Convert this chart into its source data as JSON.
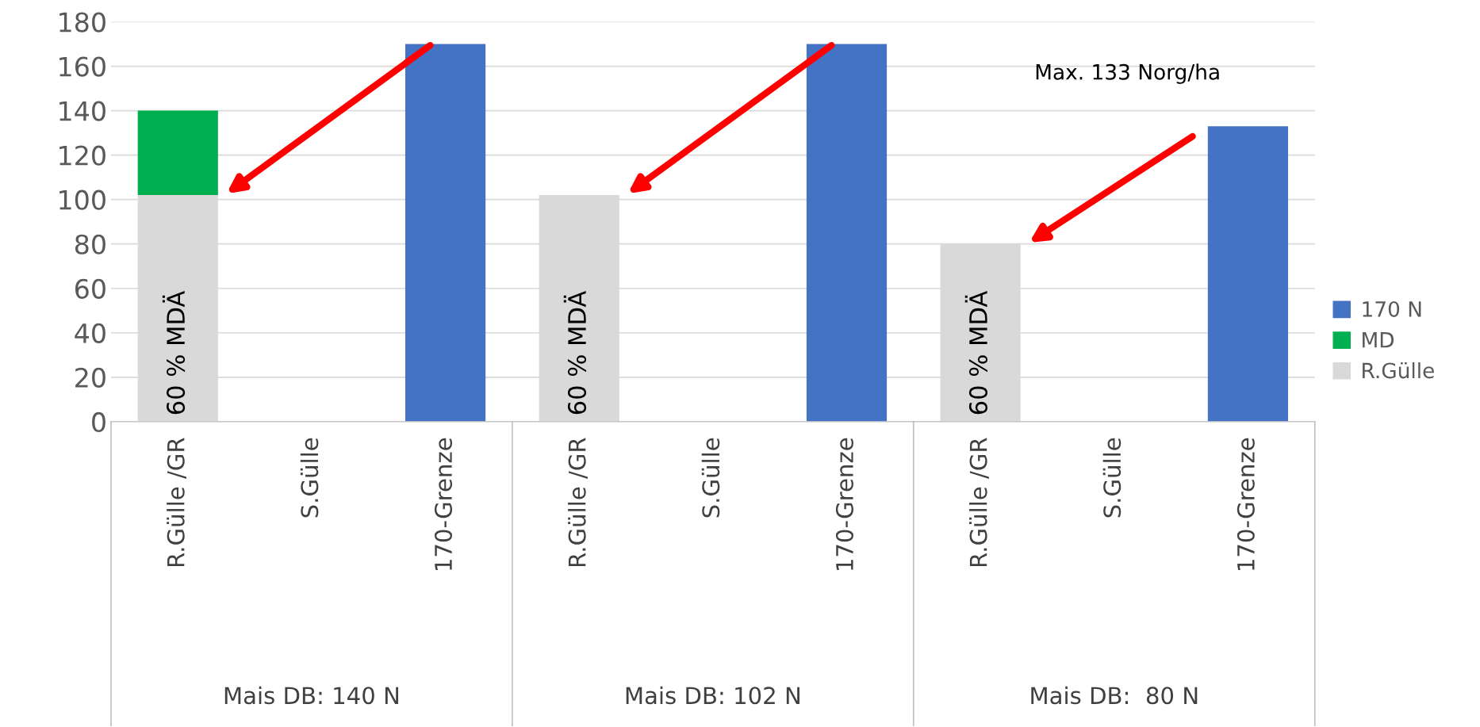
{
  "chart_data": {
    "type": "bar",
    "stacked": true,
    "categories": [
      "R.Gülle /GR",
      "S.Gülle",
      "170-Grenze",
      "R.Gülle /GR",
      "S.Gülle",
      "170-Grenze",
      "R.Gülle /GR",
      "S.Gülle",
      "170-Grenze"
    ],
    "series": [
      {
        "name": "R.Gülle",
        "color": "#d9d9d9",
        "values": [
          102,
          null,
          null,
          102,
          null,
          null,
          80,
          null,
          null
        ]
      },
      {
        "name": "MD",
        "color": "#00b050",
        "values": [
          38,
          null,
          null,
          null,
          null,
          null,
          null,
          null,
          null
        ]
      },
      {
        "name": "170 N",
        "color": "#4472c4",
        "values": [
          null,
          null,
          170,
          null,
          null,
          170,
          null,
          null,
          133
        ]
      }
    ],
    "ylim": [
      0,
      180
    ],
    "yticks": [
      0,
      20,
      40,
      60,
      80,
      100,
      120,
      140,
      160,
      180
    ],
    "grid": "y",
    "legend": "right",
    "annotations": [
      "60 % MDÄ",
      "60 % MDÄ",
      "60 % MDÄ",
      "Max. 133 Norg/ha",
      "Mais DB: 140 N",
      "Mais DB: 102 N",
      "Mais DB:  80 N"
    ]
  }
}
